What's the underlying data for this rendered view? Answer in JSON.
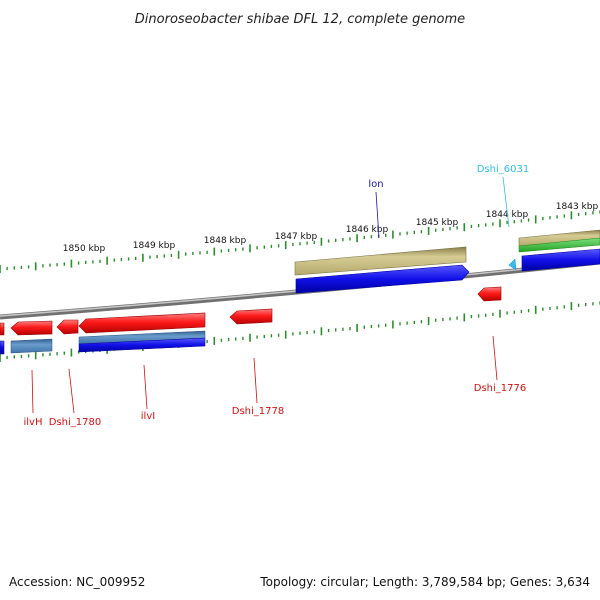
{
  "title": "Dinoroseobacter shibae DFL 12, complete genome",
  "footer": {
    "accession": "Accession: NC_009952",
    "summary": "Topology: circular; Length: 3,789,584 bp; Genes: 3,634"
  },
  "colors": {
    "backbone": "#8a8a8a",
    "tick": "#2e8b2e",
    "gene_forward": "#ff1a1a",
    "gene_reverse": "#1c1cf0",
    "label_red": "#cc1111",
    "label_blue": "#1a1aa0",
    "label_cyan": "#33bbdd",
    "khaki": "#c2b77a",
    "steelblue": "#4a7fb5",
    "green": "#3cc43c"
  },
  "scale_labels": [
    "1850 kbp",
    "1849 kbp",
    "1848 kbp",
    "1847 kbp",
    "1846 kbp",
    "1845 kbp",
    "1844 kbp",
    "1843 kbp"
  ],
  "gene_labels": [
    "ilvH",
    "Dshi_1780",
    "ilvI",
    "Dshi_1778",
    "lon",
    "Dshi_6031",
    "Dshi_1776"
  ]
}
